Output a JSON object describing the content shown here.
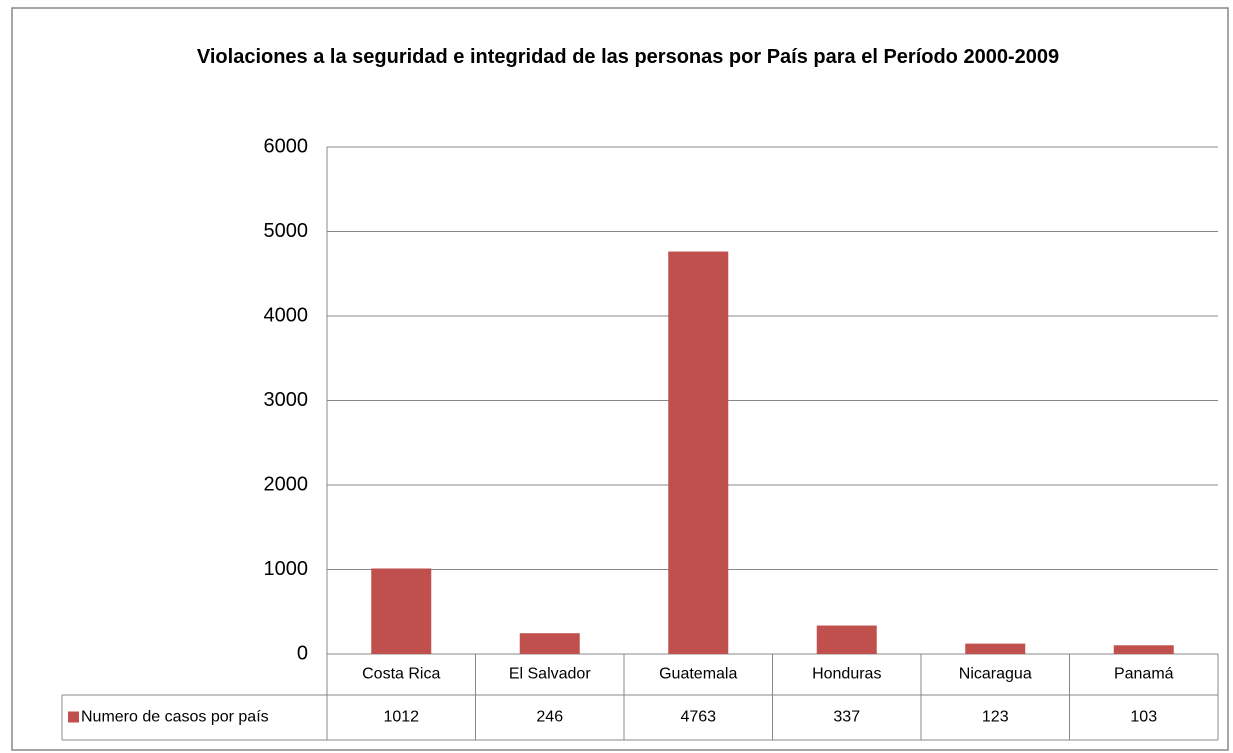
{
  "chart_data": {
    "type": "bar",
    "title": "Violaciones a la seguridad e integridad de las personas por País para el Período 2000-2009",
    "categories": [
      "Costa Rica",
      "El Salvador",
      "Guatemala",
      "Honduras",
      "Nicaragua",
      "Panamá"
    ],
    "series": [
      {
        "name": "Numero de casos por país",
        "color": "#c0504d",
        "values": [
          1012,
          246,
          4763,
          337,
          123,
          103
        ]
      }
    ],
    "ylim": [
      0,
      6000
    ],
    "yticks": [
      0,
      1000,
      2000,
      3000,
      4000,
      5000,
      6000
    ],
    "grid": true,
    "data_table": true
  }
}
